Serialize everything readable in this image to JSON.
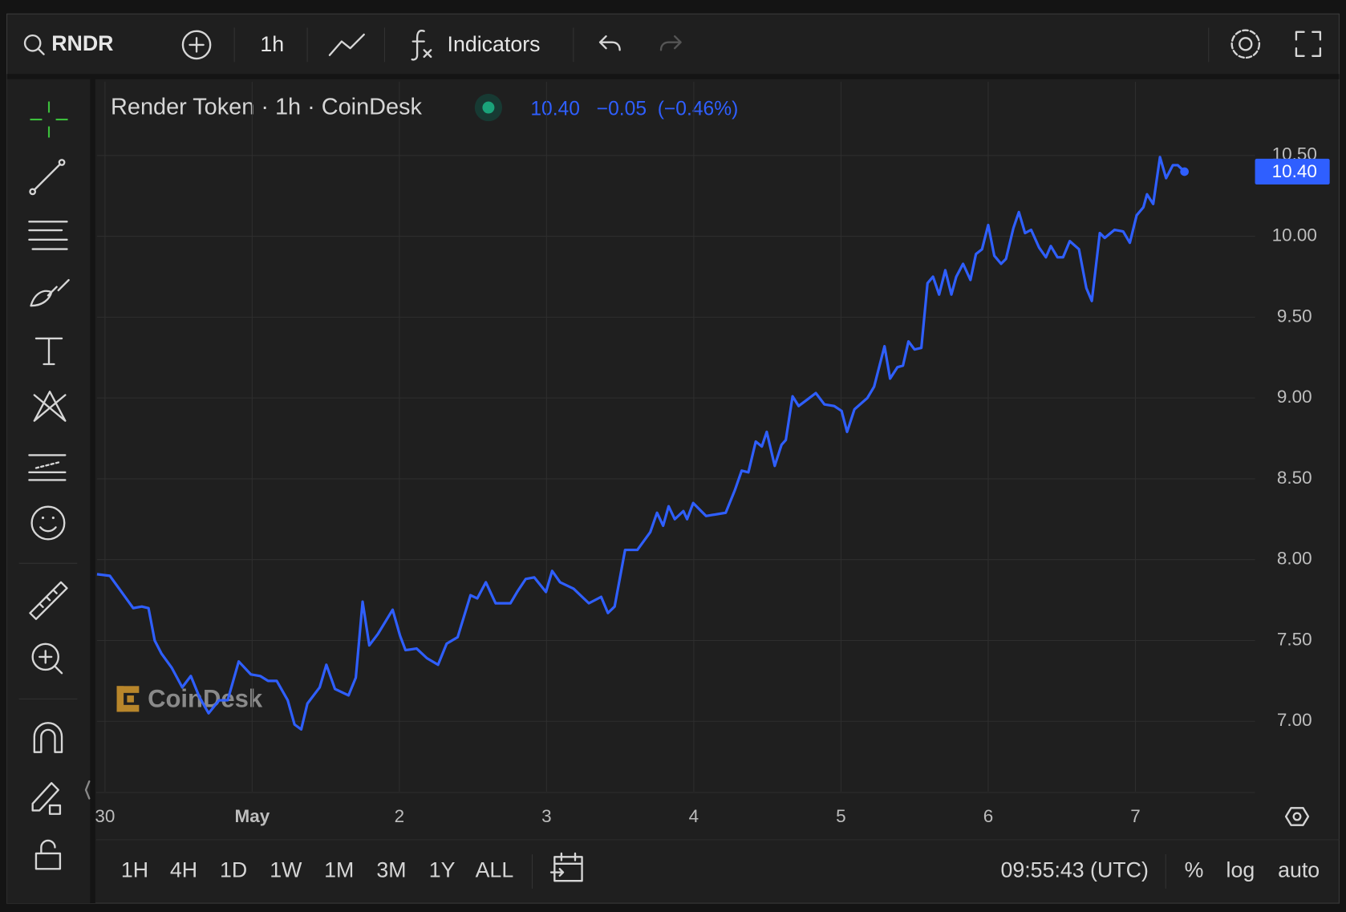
{
  "toolbar": {
    "symbol": "RNDR",
    "interval": "1h",
    "indicators": "Indicators"
  },
  "chart_data": {
    "type": "line",
    "title": "Render Token · 1h · CoinDesk",
    "watermark": "CoinDesk",
    "color": "#2f5fff",
    "last_price": {
      "value": 10.4,
      "label": "10.40"
    },
    "change": {
      "value": -0.05,
      "label": "−0.05"
    },
    "change_percent": {
      "value": -0.46,
      "label": "(−0.46%)"
    },
    "x": [
      -1.3,
      0.8,
      2.5,
      4.6,
      6.0,
      7.1,
      8.1,
      9.2,
      10.9,
      12.6,
      14.0,
      15.4,
      16.9,
      18.6,
      20.0,
      21.8,
      23.8,
      25.3,
      26.6,
      28.0,
      29.8,
      30.9,
      32.0,
      33.0,
      35.0,
      36.1,
      37.5,
      39.7,
      40.9,
      42.0,
      43.1,
      44.5,
      46.9,
      48.1,
      49.0,
      50.8,
      52.5,
      54.3,
      55.7,
      57.5,
      59.6,
      60.7,
      62.1,
      63.7,
      66.1,
      67.2,
      68.6,
      70.0,
      71.9,
      72.9,
      74.2,
      76.4,
      78.9,
      80.9,
      82.0,
      83.1,
      84.8,
      86.8,
      88.9,
      90.0,
      91.0,
      91.9,
      92.9,
      94.3,
      94.9,
      95.9,
      98.0,
      101.2,
      102.7,
      103.8,
      104.9,
      106.1,
      107.1,
      107.9,
      109.2,
      110.3,
      111.0,
      112.1,
      113.1,
      114.5,
      115.9,
      117.3,
      118.9,
      120.1,
      121.0,
      122.2,
      124.3,
      125.4,
      127.1,
      128.0,
      129.2,
      130.1,
      131.0,
      132.0,
      133.1,
      134.1,
      135.0,
      136.0,
      137.0,
      138.0,
      138.8,
      139.9,
      141.1,
      142.0,
      143.0,
      144.0,
      145.0,
      146.1,
      146.9,
      148.1,
      149.0,
      150.0,
      151.0,
      152.3,
      153.4,
      154.2,
      155.3,
      156.2,
      157.3,
      158.8,
      160.0,
      160.9,
      162.2,
      163.0,
      164.6,
      166.0,
      167.1,
      168.2,
      169.3,
      169.9,
      170.9,
      172.0,
      173.0,
      174.1,
      174.9,
      176.0
    ],
    "values": [
      7.91,
      7.9,
      7.81,
      7.7,
      7.71,
      7.7,
      7.5,
      7.42,
      7.33,
      7.21,
      7.28,
      7.15,
      7.05,
      7.13,
      7.13,
      7.37,
      7.29,
      7.28,
      7.25,
      7.25,
      7.13,
      6.98,
      6.95,
      7.11,
      7.21,
      7.35,
      7.2,
      7.16,
      7.27,
      7.74,
      7.47,
      7.54,
      7.69,
      7.53,
      7.44,
      7.45,
      7.39,
      7.35,
      7.48,
      7.52,
      7.78,
      7.76,
      7.86,
      7.73,
      7.73,
      7.8,
      7.88,
      7.89,
      7.8,
      7.93,
      7.86,
      7.82,
      7.73,
      7.77,
      7.67,
      7.71,
      8.06,
      8.06,
      8.17,
      8.29,
      8.21,
      8.33,
      8.25,
      8.3,
      8.25,
      8.35,
      8.27,
      8.29,
      8.43,
      8.55,
      8.54,
      8.73,
      8.7,
      8.79,
      8.58,
      8.71,
      8.74,
      9.01,
      8.95,
      8.99,
      9.03,
      8.96,
      8.95,
      8.92,
      8.79,
      8.93,
      9.0,
      9.07,
      9.32,
      9.12,
      9.19,
      9.2,
      9.35,
      9.3,
      9.31,
      9.71,
      9.75,
      9.64,
      9.79,
      9.64,
      9.75,
      9.83,
      9.73,
      9.89,
      9.92,
      10.07,
      9.88,
      9.83,
      9.86,
      10.05,
      10.15,
      10.02,
      10.04,
      9.93,
      9.87,
      9.94,
      9.87,
      9.87,
      9.97,
      9.92,
      9.68,
      9.6,
      10.02,
      9.99,
      10.04,
      10.03,
      9.96,
      10.13,
      10.18,
      10.26,
      10.2,
      10.49,
      10.36,
      10.44,
      10.44,
      10.4
    ],
    "xlim": [
      -1.3,
      187.5
    ],
    "xticks": [
      {
        "value": 0,
        "label": "30"
      },
      {
        "value": 24,
        "label": "May"
      },
      {
        "value": 48,
        "label": "2"
      },
      {
        "value": 72,
        "label": "3"
      },
      {
        "value": 96,
        "label": "4"
      },
      {
        "value": 120,
        "label": "5"
      },
      {
        "value": 144,
        "label": "6"
      },
      {
        "value": 168,
        "label": "7"
      }
    ],
    "ylim": [
      6.565,
      10.956
    ],
    "yticks": [
      {
        "value": 7,
        "label": "7.00"
      },
      {
        "value": 7.5,
        "label": "7.50"
      },
      {
        "value": 8,
        "label": "8.00"
      },
      {
        "value": 8.5,
        "label": "8.50"
      },
      {
        "value": 9,
        "label": "9.00"
      },
      {
        "value": 9.5,
        "label": "9.50"
      },
      {
        "value": 10,
        "label": "10.00"
      },
      {
        "value": 10.5,
        "label": "10.50"
      }
    ],
    "grid": true
  },
  "bottom_bar": {
    "ranges": [
      "1H",
      "4H",
      "1D",
      "1W",
      "1M",
      "3M",
      "1Y",
      "ALL"
    ],
    "clock": "09:55:43 (UTC)",
    "percent": "%",
    "log": "log",
    "auto": "auto"
  }
}
